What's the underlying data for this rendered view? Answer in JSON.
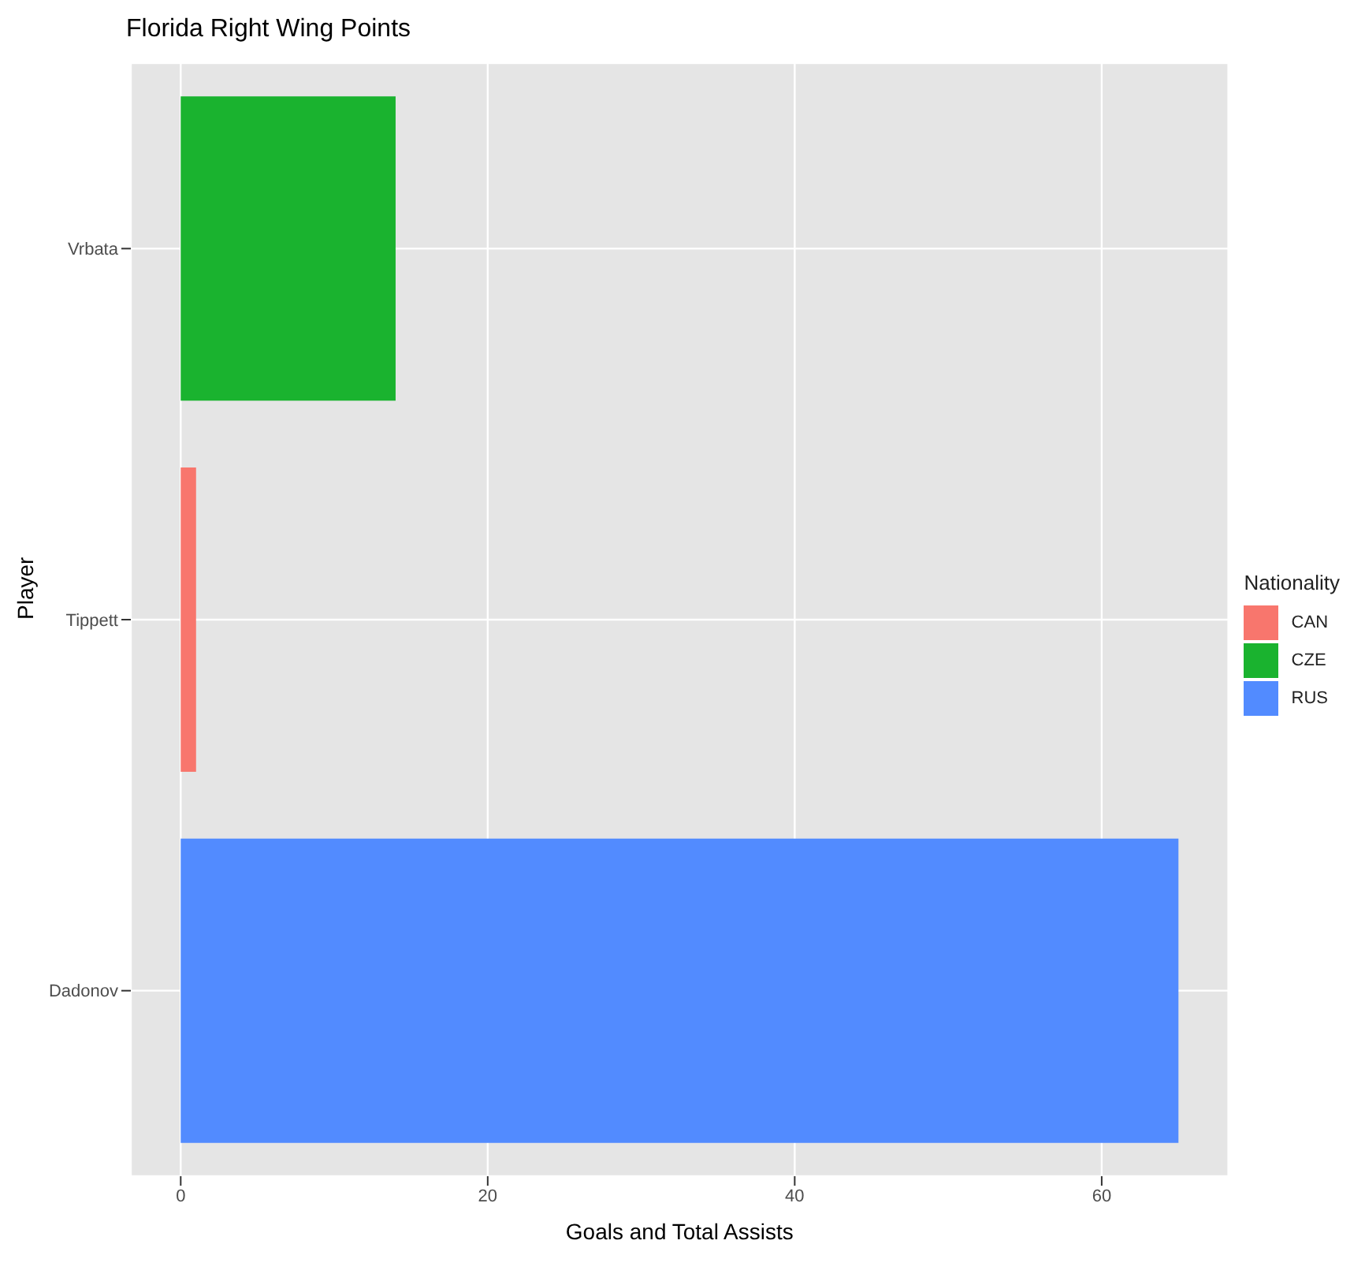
{
  "chart_data": {
    "type": "bar",
    "title": "Florida Right Wing Points",
    "xlabel": "Goals and Total Assists",
    "ylabel": "Player",
    "legend_title": "Nationality",
    "orientation": "horizontal",
    "categories": [
      "Vrbata",
      "Tippett",
      "Dadonov"
    ],
    "series": [
      {
        "name": "CAN",
        "color": "#f8766d",
        "values": [
          null,
          1,
          null
        ]
      },
      {
        "name": "CZE",
        "color": "#1ab32f",
        "values": [
          14,
          null,
          null
        ]
      },
      {
        "name": "RUS",
        "color": "#528bff",
        "values": [
          null,
          null,
          65
        ]
      }
    ],
    "xlim": [
      -3.25,
      68.25
    ],
    "xticks": [
      0,
      20,
      40,
      60
    ],
    "grid": true,
    "legend": "right"
  }
}
